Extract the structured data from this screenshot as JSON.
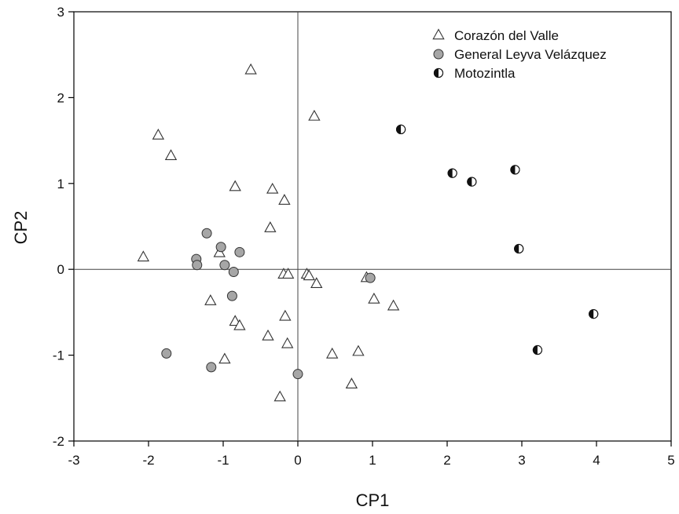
{
  "chart_data": {
    "type": "scatter",
    "xlabel": "CP1",
    "ylabel": "CP2",
    "xlim": [
      -3,
      5
    ],
    "ylim": [
      -2,
      3
    ],
    "xticks": [
      "-3",
      "-2",
      "-1",
      "0",
      "1",
      "2",
      "3",
      "4",
      "5"
    ],
    "yticks": [
      "-2",
      "-1",
      "0",
      "1",
      "2",
      "3"
    ],
    "reference_lines": {
      "x": 0,
      "y": 0
    },
    "grid": false,
    "legend_position": "top-right",
    "series": [
      {
        "name": "Corazón del Valle",
        "marker": "open-triangle",
        "points": [
          [
            -0.63,
            2.32
          ],
          [
            0.22,
            1.78
          ],
          [
            -1.87,
            1.56
          ],
          [
            -1.7,
            1.32
          ],
          [
            -0.84,
            0.96
          ],
          [
            -0.34,
            0.93
          ],
          [
            -0.18,
            0.8
          ],
          [
            -0.37,
            0.48
          ],
          [
            -2.07,
            0.14
          ],
          [
            -1.05,
            0.19
          ],
          [
            -0.19,
            -0.06
          ],
          [
            -0.13,
            -0.06
          ],
          [
            0.12,
            -0.06
          ],
          [
            0.15,
            -0.08
          ],
          [
            0.25,
            -0.17
          ],
          [
            0.92,
            -0.1
          ],
          [
            1.02,
            -0.35
          ],
          [
            1.28,
            -0.43
          ],
          [
            -1.17,
            -0.37
          ],
          [
            -0.84,
            -0.61
          ],
          [
            -0.78,
            -0.66
          ],
          [
            -0.17,
            -0.55
          ],
          [
            -0.4,
            -0.78
          ],
          [
            -0.14,
            -0.87
          ],
          [
            -0.98,
            -1.05
          ],
          [
            0.46,
            -0.99
          ],
          [
            0.81,
            -0.96
          ],
          [
            0.72,
            -1.34
          ],
          [
            -0.24,
            -1.49
          ]
        ]
      },
      {
        "name": "General Leyva Velázquez",
        "marker": "gray-circle",
        "points": [
          [
            -1.22,
            0.42
          ],
          [
            -1.03,
            0.26
          ],
          [
            -0.78,
            0.2
          ],
          [
            -1.36,
            0.12
          ],
          [
            -1.35,
            0.05
          ],
          [
            -0.98,
            0.05
          ],
          [
            -0.86,
            -0.03
          ],
          [
            0.97,
            -0.1
          ],
          [
            -0.88,
            -0.31
          ],
          [
            -1.76,
            -0.98
          ],
          [
            -1.16,
            -1.14
          ],
          [
            0.0,
            -1.22
          ]
        ]
      },
      {
        "name": "Motozintla",
        "marker": "half-filled-circle",
        "points": [
          [
            1.38,
            1.63
          ],
          [
            2.07,
            1.12
          ],
          [
            2.91,
            1.16
          ],
          [
            2.33,
            1.02
          ],
          [
            2.96,
            0.24
          ],
          [
            3.96,
            -0.52
          ],
          [
            3.21,
            -0.94
          ]
        ]
      }
    ]
  }
}
